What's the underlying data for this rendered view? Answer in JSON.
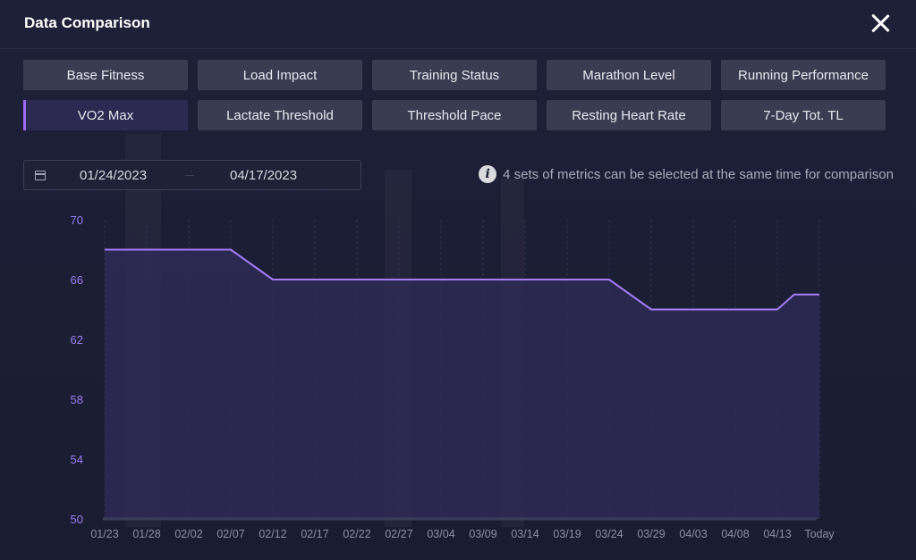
{
  "window": {
    "title": "Data Comparison",
    "close_icon": "close-icon"
  },
  "tabs": [
    {
      "label": "Base Fitness",
      "active": false
    },
    {
      "label": "Load Impact",
      "active": false
    },
    {
      "label": "Training Status",
      "active": false
    },
    {
      "label": "Marathon Level",
      "active": false
    },
    {
      "label": "Running Performance",
      "active": false
    },
    {
      "label": "VO2 Max",
      "active": true
    },
    {
      "label": "Lactate Threshold",
      "active": false
    },
    {
      "label": "Threshold Pace",
      "active": false
    },
    {
      "label": "Resting Heart Rate",
      "active": false
    },
    {
      "label": "7-Day Tot. TL",
      "active": false
    }
  ],
  "date_range": {
    "icon": "calendar-icon",
    "start": "01/24/2023",
    "end": "04/17/2023"
  },
  "info": {
    "icon": "info-icon",
    "text": "4 sets of metrics can be selected at the same time for comparison"
  },
  "colors": {
    "accent": "#9b6cf7",
    "line": "#a57df5",
    "area": "#2e2a56",
    "axis_label": "#9b7ff0",
    "x_label": "#8e90a6"
  },
  "chart_data": {
    "type": "area",
    "title": "",
    "xlabel": "",
    "ylabel": "",
    "ylim": [
      50,
      70
    ],
    "yticks": [
      50,
      54,
      58,
      62,
      66,
      70
    ],
    "x_tick_labels": [
      "01/23",
      "01/28",
      "02/02",
      "02/07",
      "02/12",
      "02/17",
      "02/22",
      "02/27",
      "03/04",
      "03/09",
      "03/14",
      "03/19",
      "03/24",
      "03/29",
      "04/03",
      "04/08",
      "04/13",
      "Today"
    ],
    "series": [
      {
        "values_by_date": [
          [
            "01/23",
            68
          ],
          [
            "02/07",
            68
          ],
          [
            "02/12",
            66
          ],
          [
            "03/24",
            66
          ],
          [
            "03/29",
            64
          ],
          [
            "04/13",
            64
          ],
          [
            "04/15",
            65
          ],
          [
            "Today",
            65
          ]
        ]
      }
    ],
    "grid": "vertical-dashed",
    "legend": "none"
  }
}
